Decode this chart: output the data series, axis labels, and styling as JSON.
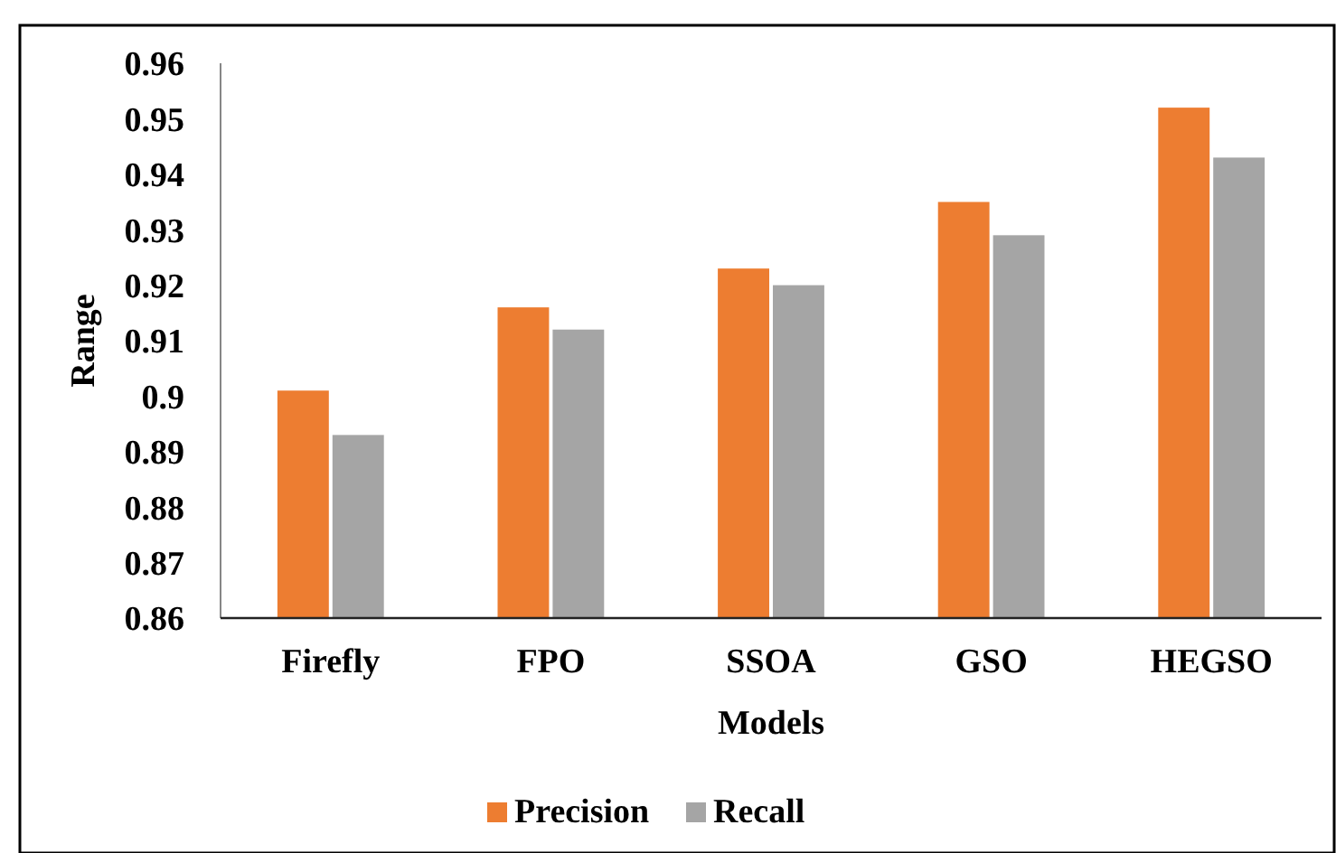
{
  "chart_data": {
    "type": "bar",
    "xlabel": "Models",
    "ylabel": "Range",
    "categories": [
      "Firefly",
      "FPO",
      "SSOA",
      "GSO",
      "HEGSO"
    ],
    "series": [
      {
        "name": "Precision",
        "color": "#ed7d31",
        "values": [
          0.901,
          0.916,
          0.923,
          0.935,
          0.952
        ]
      },
      {
        "name": "Recall",
        "color": "#a5a5a5",
        "values": [
          0.893,
          0.912,
          0.92,
          0.929,
          0.943
        ]
      }
    ],
    "ylim": [
      0.86,
      0.96
    ],
    "yticks": [
      0.86,
      0.87,
      0.88,
      0.89,
      0.9,
      0.91,
      0.92,
      0.93,
      0.94,
      0.95,
      0.96
    ],
    "grid": false,
    "legend": "bottom"
  }
}
